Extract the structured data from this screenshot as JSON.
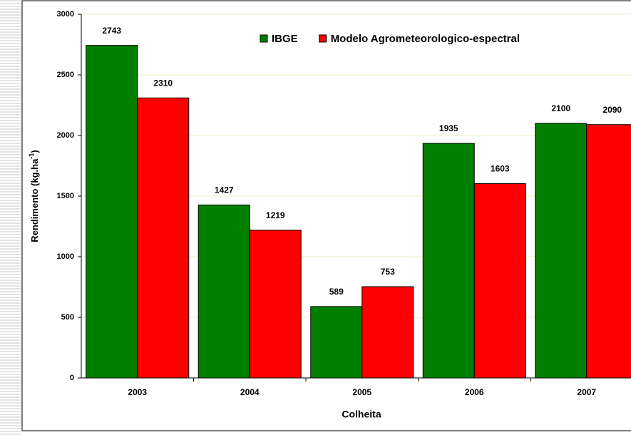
{
  "chart_data": {
    "type": "bar",
    "ylabel": [
      "Rendimento (kg.ha",
      "-1",
      ")"
    ],
    "xlabel": "Colheita",
    "categories": [
      "2003",
      "2004",
      "2005",
      "2006",
      "2007"
    ],
    "series": [
      {
        "name": "IBGE",
        "color": "#008000",
        "values": [
          2743,
          1427,
          589,
          1935,
          2100
        ]
      },
      {
        "name": "Modelo Agrometeorologico-espectral",
        "color": "#ff0000",
        "values": [
          2310,
          1219,
          753,
          1603,
          2090
        ]
      }
    ],
    "ylim": [
      0,
      3000
    ],
    "yticks": [
      0,
      500,
      1000,
      1500,
      2000,
      2500,
      3000
    ],
    "grid": true
  }
}
